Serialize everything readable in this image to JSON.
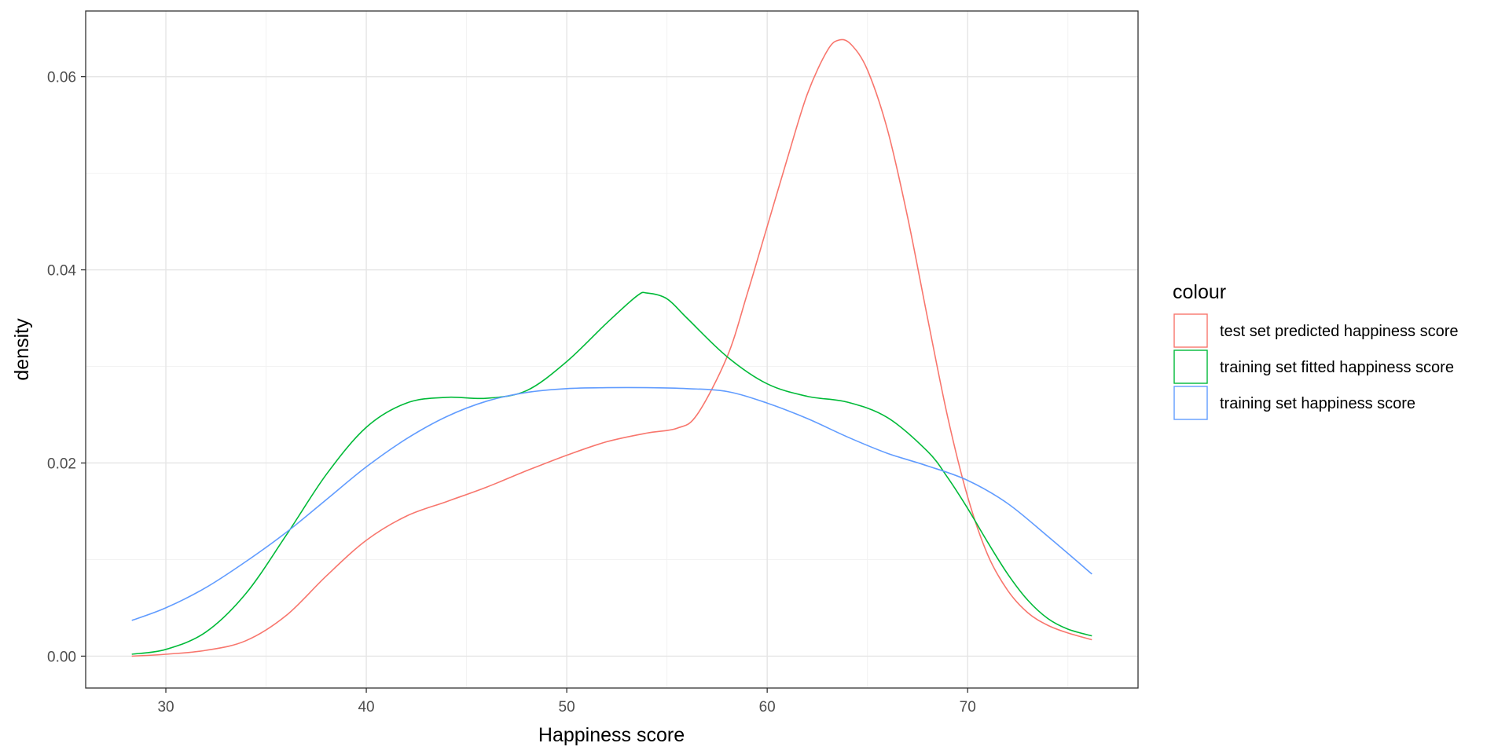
{
  "chart_data": {
    "type": "line",
    "title": "",
    "xlabel": "Happiness score",
    "ylabel": "density",
    "xlim": [
      26,
      78.5
    ],
    "ylim": [
      -0.0033,
      0.0668
    ],
    "x_ticks": [
      30,
      40,
      50,
      60,
      70
    ],
    "x_tick_labels": [
      "30",
      "40",
      "50",
      "60",
      "70"
    ],
    "y_ticks": [
      0,
      0.02,
      0.04,
      0.06
    ],
    "y_tick_labels": [
      "0.00",
      "0.02",
      "0.04",
      "0.06"
    ],
    "grid": true,
    "legend": {
      "title": "colour",
      "position": "right"
    },
    "series": [
      {
        "name": "test set predicted happiness score",
        "color": "#F8766D",
        "points": [
          [
            28.3,
            0.0
          ],
          [
            30,
            0.0002
          ],
          [
            32,
            0.0006
          ],
          [
            34,
            0.0016
          ],
          [
            36,
            0.0042
          ],
          [
            38,
            0.0083
          ],
          [
            40,
            0.012
          ],
          [
            42,
            0.0145
          ],
          [
            44,
            0.016
          ],
          [
            46,
            0.0175
          ],
          [
            48,
            0.0192
          ],
          [
            50,
            0.0208
          ],
          [
            52,
            0.0222
          ],
          [
            54,
            0.0231
          ],
          [
            55.5,
            0.0236
          ],
          [
            56.5,
            0.025
          ],
          [
            58,
            0.031
          ],
          [
            59,
            0.0375
          ],
          [
            60,
            0.0445
          ],
          [
            61,
            0.0515
          ],
          [
            62,
            0.0582
          ],
          [
            63,
            0.0627
          ],
          [
            63.6,
            0.0638
          ],
          [
            64.2,
            0.0633
          ],
          [
            65,
            0.0607
          ],
          [
            66,
            0.0545
          ],
          [
            67,
            0.0455
          ],
          [
            68,
            0.035
          ],
          [
            69,
            0.0248
          ],
          [
            70,
            0.0165
          ],
          [
            71,
            0.0105
          ],
          [
            72,
            0.0068
          ],
          [
            73,
            0.0045
          ],
          [
            74,
            0.0032
          ],
          [
            75,
            0.0024
          ],
          [
            76.2,
            0.0017
          ]
        ]
      },
      {
        "name": "training set fitted happiness score",
        "color": "#00BA38",
        "points": [
          [
            28.3,
            0.0002
          ],
          [
            30,
            0.0007
          ],
          [
            32,
            0.0025
          ],
          [
            34,
            0.0065
          ],
          [
            36,
            0.0125
          ],
          [
            38,
            0.0188
          ],
          [
            40,
            0.0237
          ],
          [
            42,
            0.0262
          ],
          [
            44,
            0.0268
          ],
          [
            46,
            0.0267
          ],
          [
            48,
            0.0275
          ],
          [
            50,
            0.0305
          ],
          [
            52,
            0.0345
          ],
          [
            53.5,
            0.0373
          ],
          [
            54,
            0.0376
          ],
          [
            55,
            0.037
          ],
          [
            56,
            0.035
          ],
          [
            58,
            0.031
          ],
          [
            60,
            0.0282
          ],
          [
            62,
            0.0269
          ],
          [
            64,
            0.0263
          ],
          [
            66,
            0.0247
          ],
          [
            68,
            0.0212
          ],
          [
            69,
            0.0185
          ],
          [
            70,
            0.0153
          ],
          [
            71,
            0.0118
          ],
          [
            72,
            0.0085
          ],
          [
            73,
            0.0058
          ],
          [
            74,
            0.0039
          ],
          [
            75,
            0.0028
          ],
          [
            76.2,
            0.0021
          ]
        ]
      },
      {
        "name": "training set happiness score",
        "color": "#619CFF",
        "points": [
          [
            28.3,
            0.0037
          ],
          [
            30,
            0.005
          ],
          [
            32,
            0.0071
          ],
          [
            34,
            0.0098
          ],
          [
            36,
            0.0128
          ],
          [
            38,
            0.0162
          ],
          [
            40,
            0.0196
          ],
          [
            42,
            0.0225
          ],
          [
            44,
            0.0248
          ],
          [
            46,
            0.0264
          ],
          [
            48,
            0.0273
          ],
          [
            50,
            0.0277
          ],
          [
            52,
            0.0278
          ],
          [
            54,
            0.0278
          ],
          [
            56,
            0.0277
          ],
          [
            58,
            0.0274
          ],
          [
            60,
            0.0262
          ],
          [
            62,
            0.0246
          ],
          [
            64,
            0.0227
          ],
          [
            66,
            0.021
          ],
          [
            68,
            0.0197
          ],
          [
            70,
            0.0182
          ],
          [
            72,
            0.0158
          ],
          [
            74,
            0.0124
          ],
          [
            76.2,
            0.0085
          ]
        ]
      }
    ]
  }
}
